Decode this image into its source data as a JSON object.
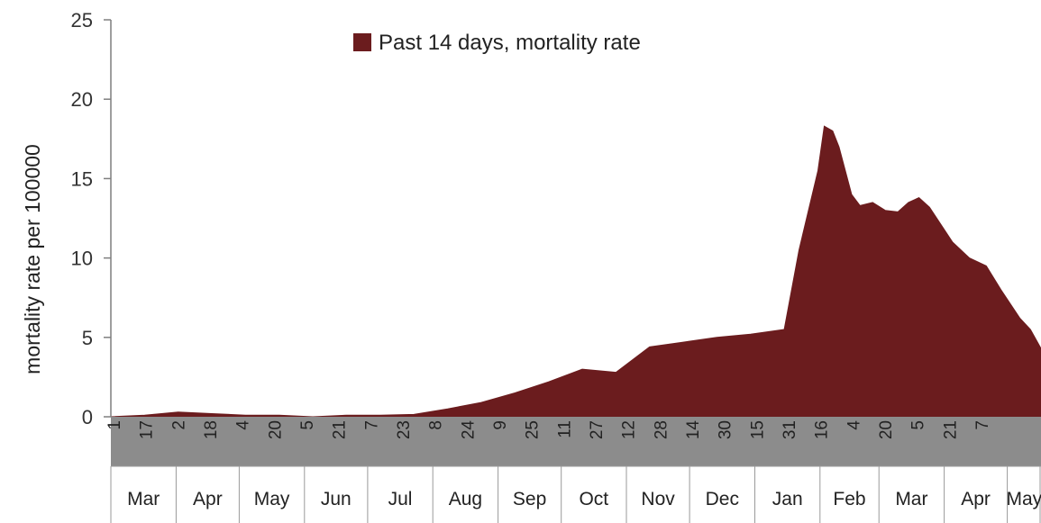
{
  "chart_data": {
    "type": "area",
    "title": "",
    "xlabel": "",
    "ylabel": "mortality rate per 100000",
    "ylim": [
      0,
      25
    ],
    "yticks": [
      0,
      5,
      10,
      15,
      20,
      25
    ],
    "grid": false,
    "legend_placement": "top-center",
    "colors": {
      "area": "#6b1c1e",
      "date_band": "#8c8c8c",
      "axis": "#7f7f7f"
    },
    "date_tick_labels": [
      "1",
      "17",
      "2",
      "18",
      "4",
      "20",
      "5",
      "21",
      "7",
      "23",
      "8",
      "24",
      "9",
      "25",
      "11",
      "27",
      "12",
      "28",
      "14",
      "30",
      "15",
      "31",
      "16",
      "4",
      "20",
      "5",
      "21",
      "7"
    ],
    "month_labels": [
      "Mar",
      "Apr",
      "May",
      "Jun",
      "Jul",
      "Aug",
      "Sep",
      "Oct",
      "Nov",
      "Dec",
      "Jan",
      "Feb",
      "Mar",
      "Apr",
      "May"
    ],
    "series": [
      {
        "name": "Past 14 days, mortality rate",
        "x": [
          "2020-03-01",
          "2020-03-17",
          "2020-04-02",
          "2020-04-18",
          "2020-05-04",
          "2020-05-20",
          "2020-06-05",
          "2020-06-21",
          "2020-07-07",
          "2020-07-23",
          "2020-08-08",
          "2020-08-24",
          "2020-09-09",
          "2020-09-25",
          "2020-10-11",
          "2020-10-27",
          "2020-11-12",
          "2020-11-28",
          "2020-12-14",
          "2020-12-30",
          "2021-01-15",
          "2021-01-22",
          "2021-01-31",
          "2021-02-03",
          "2021-02-07",
          "2021-02-10",
          "2021-02-16",
          "2021-02-20",
          "2021-02-26",
          "2021-03-04",
          "2021-03-10",
          "2021-03-15",
          "2021-03-20",
          "2021-03-25",
          "2021-04-05",
          "2021-04-13",
          "2021-04-21",
          "2021-04-28",
          "2021-05-07",
          "2021-05-12",
          "2021-05-17"
        ],
        "values": [
          0.0,
          0.1,
          0.3,
          0.2,
          0.1,
          0.1,
          0.0,
          0.1,
          0.1,
          0.15,
          0.5,
          0.9,
          1.5,
          2.2,
          3.0,
          2.8,
          4.4,
          4.7,
          5.0,
          5.2,
          5.5,
          10.5,
          15.5,
          18.3,
          18.0,
          17.0,
          14.0,
          13.3,
          13.5,
          13.0,
          12.9,
          13.5,
          13.8,
          13.2,
          11.0,
          10.0,
          9.5,
          8.0,
          6.2,
          5.5,
          4.3
        ]
      }
    ]
  }
}
